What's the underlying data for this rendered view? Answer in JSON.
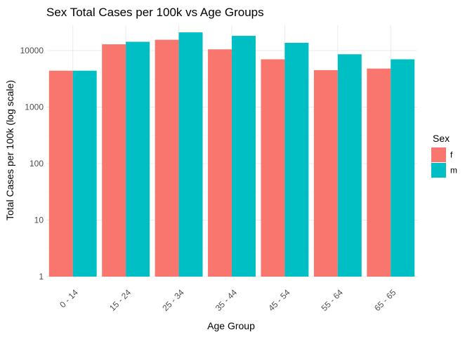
{
  "chart_data": {
    "type": "bar",
    "title": "Sex Total Cases per 100k vs Age Groups",
    "xlabel": "Age Group",
    "ylabel": "Total Cases per 100k (log scale)",
    "y_scale": "log10",
    "ylim": [
      1,
      28000
    ],
    "y_ticks": [
      1,
      10,
      100,
      1000,
      10000
    ],
    "y_tick_labels": [
      "1",
      "10",
      "100",
      "1000",
      "10000"
    ],
    "categories": [
      "0 - 14",
      "15 - 24",
      "25 - 34",
      "35 - 44",
      "45 - 54",
      "55 - 64",
      "65 - 65"
    ],
    "series": [
      {
        "name": "f",
        "color": "#F8766D",
        "values": [
          4400,
          12900,
          15500,
          10500,
          7000,
          4500,
          4800
        ]
      },
      {
        "name": "m",
        "color": "#00BFC4",
        "values": [
          4400,
          14300,
          21000,
          18200,
          13700,
          8600,
          7000
        ]
      }
    ],
    "legend": {
      "title": "Sex",
      "position": "right"
    },
    "grid": true,
    "x_tick_rotation": "45deg"
  }
}
